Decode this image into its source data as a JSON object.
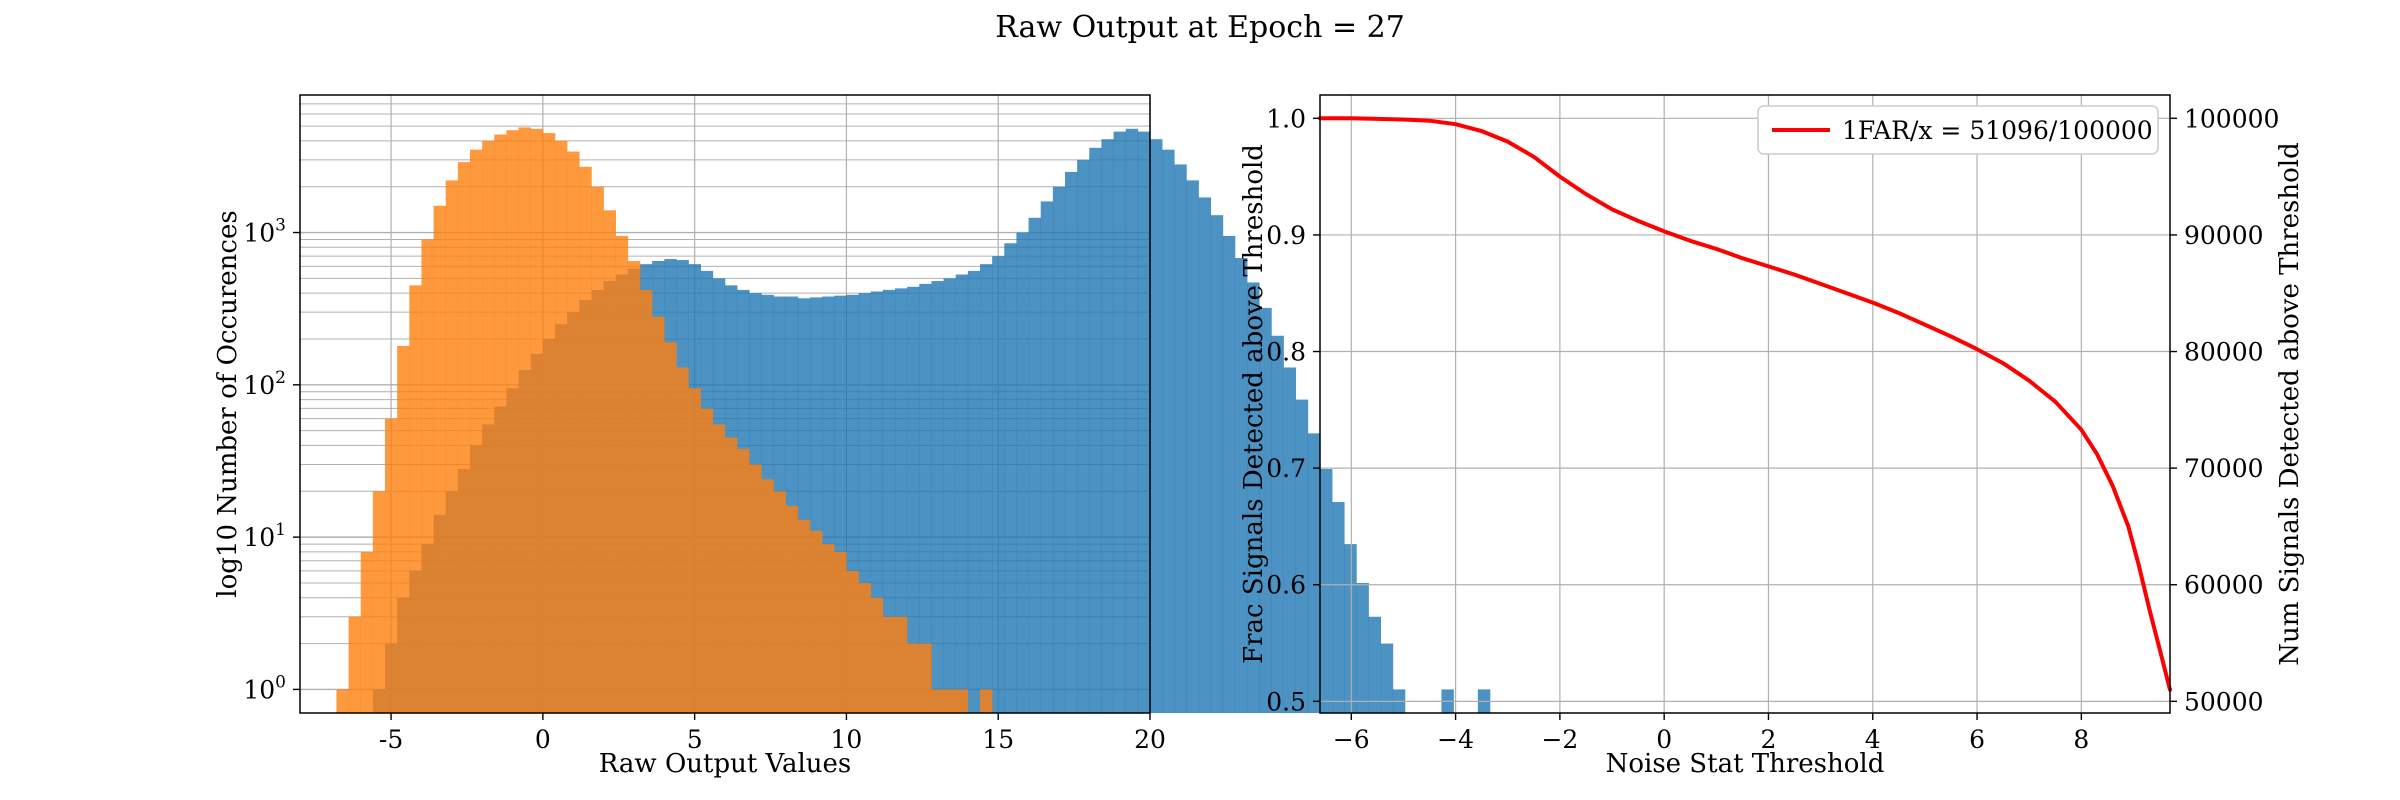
{
  "figure": {
    "suptitle": "Raw Output at Epoch = 27"
  },
  "chart_data": [
    {
      "type": "bar",
      "subtype": "histogram",
      "xlabel": "Raw Output Values",
      "ylabel": "log10 Number of Occurences",
      "xlim": [
        -8,
        20
      ],
      "ylim": [
        0.7,
        8000
      ],
      "yscale": "log",
      "grid": true,
      "xticks": [
        "-5",
        "0",
        "5",
        "10",
        "15",
        "20"
      ],
      "xtick_values": [
        -5,
        0,
        5,
        10,
        15,
        20
      ],
      "yticks": [
        {
          "base": "10",
          "exp": "0",
          "value": 1
        },
        {
          "base": "10",
          "exp": "1",
          "value": 10
        },
        {
          "base": "10",
          "exp": "2",
          "value": 100
        },
        {
          "base": "10",
          "exp": "3",
          "value": 1000
        }
      ],
      "bin_width": 0.4,
      "series": [
        {
          "color": "#1f77b4",
          "opacity": 0.8,
          "bin_start": -5.6,
          "counts": [
            1,
            2,
            4,
            6,
            9,
            14,
            20,
            28,
            40,
            55,
            72,
            95,
            125,
            160,
            200,
            250,
            300,
            360,
            420,
            480,
            530,
            580,
            620,
            650,
            670,
            660,
            620,
            560,
            500,
            450,
            420,
            400,
            390,
            380,
            380,
            370,
            375,
            380,
            385,
            390,
            400,
            410,
            420,
            430,
            440,
            460,
            480,
            500,
            530,
            560,
            620,
            700,
            850,
            1000,
            1250,
            1600,
            2000,
            2500,
            3000,
            3600,
            4100,
            4600,
            4800,
            4600,
            4100,
            3500,
            2800,
            2200,
            1700,
            1300,
            950,
            680,
            470,
            320,
            210,
            130,
            80,
            48,
            28,
            17,
            9,
            5,
            3,
            2,
            1,
            0,
            0,
            0,
            1,
            0,
            0,
            1
          ]
        },
        {
          "color": "#ff7f0e",
          "opacity": 0.8,
          "bin_start": -6.8,
          "counts": [
            1,
            3,
            8,
            20,
            60,
            180,
            450,
            900,
            1500,
            2200,
            2900,
            3500,
            4000,
            4400,
            4700,
            4900,
            4800,
            4500,
            4000,
            3400,
            2700,
            2000,
            1400,
            950,
            650,
            420,
            280,
            190,
            130,
            95,
            70,
            55,
            45,
            38,
            30,
            24,
            20,
            16,
            13,
            11,
            9,
            8,
            6,
            5,
            4,
            3,
            3,
            2,
            2,
            1,
            1,
            1,
            0,
            1
          ]
        }
      ]
    },
    {
      "type": "line",
      "xlabel": "Noise Stat Threshold",
      "ylabel": "Frac Signals Detected above Threshold",
      "ylabel_right": "Num Signals Detected above Threshold",
      "xlim": [
        -6.6,
        9.7
      ],
      "ylim": [
        0.49,
        1.02
      ],
      "grid": true,
      "xticks": [
        "−6",
        "−4",
        "−2",
        "0",
        "2",
        "4",
        "6",
        "8"
      ],
      "xtick_values": [
        -6,
        -4,
        -2,
        0,
        2,
        4,
        6,
        8
      ],
      "yticks": [
        "0.5",
        "0.6",
        "0.7",
        "0.8",
        "0.9",
        "1.0"
      ],
      "ytick_values": [
        0.5,
        0.6,
        0.7,
        0.8,
        0.9,
        1.0
      ],
      "yticks_right": [
        "50000",
        "60000",
        "70000",
        "80000",
        "90000",
        "100000"
      ],
      "legend_position": "top-right",
      "series": [
        {
          "name": "1FAR/x = 51096/100000",
          "color": "#ff0000",
          "x": [
            -6.6,
            -6,
            -5,
            -4.5,
            -4,
            -3.5,
            -3,
            -2.5,
            -2,
            -1.5,
            -1,
            -0.5,
            0,
            0.5,
            1,
            1.5,
            2,
            2.5,
            3,
            3.5,
            4,
            4.5,
            5,
            5.5,
            6,
            6.5,
            7,
            7.5,
            8,
            8.3,
            8.6,
            8.9,
            9.1,
            9.3,
            9.5,
            9.7
          ],
          "y": [
            1.0,
            1.0,
            0.999,
            0.998,
            0.995,
            0.989,
            0.98,
            0.967,
            0.95,
            0.935,
            0.922,
            0.912,
            0.903,
            0.895,
            0.888,
            0.88,
            0.873,
            0.866,
            0.858,
            0.85,
            0.842,
            0.833,
            0.823,
            0.813,
            0.802,
            0.79,
            0.775,
            0.757,
            0.733,
            0.712,
            0.685,
            0.65,
            0.617,
            0.58,
            0.545,
            0.51
          ]
        }
      ]
    }
  ]
}
